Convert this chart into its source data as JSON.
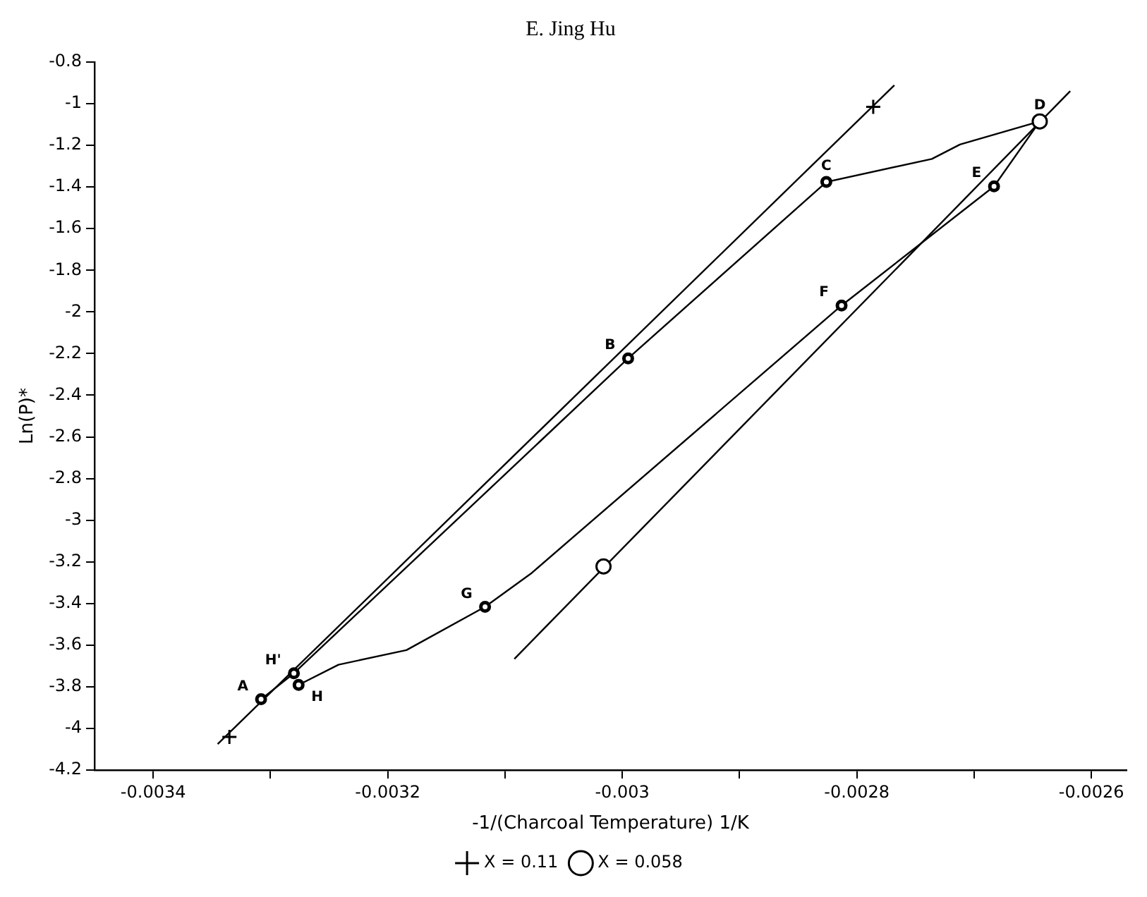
{
  "chart_data": {
    "type": "line",
    "title": "E. Jing Hu",
    "xlabel": "-1/(Charcoal Temperature) 1/K",
    "ylabel": "Ln(P)*",
    "xlim": [
      -0.00345,
      -0.00257
    ],
    "xticks": [
      -0.0034,
      {
        "value": -0.0033,
        "label": null
      },
      -0.0032,
      {
        "value": -0.0031,
        "label": null
      },
      -0.003,
      {
        "value": -0.0029,
        "label": null
      },
      -0.0028,
      {
        "value": -0.0027,
        "label": null
      },
      -0.0026
    ],
    "ylim": [
      -4.2,
      -0.8
    ],
    "yticks": [
      -0.8,
      -1,
      -1.2,
      -1.4,
      -1.6,
      -1.8,
      -2,
      -2.2,
      -2.4,
      -2.6,
      -2.8,
      -3,
      -3.2,
      -3.4,
      -3.6,
      -3.8,
      -4,
      -4.2
    ],
    "grid": false,
    "legend": "bottom",
    "series": [
      {
        "color": "#000000",
        "marker": "none",
        "x": [
          -0.003345,
          -0.002768
        ],
        "values": [
          -4.075,
          -0.911
        ]
      },
      {
        "color": "#000000",
        "marker": "none",
        "x": [
          -0.003092,
          -0.002618
        ],
        "values": [
          -3.666,
          -0.939
        ]
      },
      {
        "color": "#000000",
        "marker": "none",
        "x": [
          -0.003308,
          -0.00328,
          -0.002995,
          -0.002826,
          -0.002736,
          -0.002712,
          -0.002644,
          -0.002683,
          -0.002813,
          -0.003078,
          -0.003117,
          -0.003184,
          -0.003242,
          -0.003276
        ],
        "values": [
          -3.86,
          -3.735,
          -2.223,
          -1.376,
          -1.265,
          -1.196,
          -1.085,
          -1.397,
          -1.969,
          -3.257,
          -3.416,
          -3.624,
          -3.694,
          -3.791
        ]
      },
      {
        "type": "scatter",
        "color": "#000000",
        "marker": "circle",
        "x": [
          -0.003308,
          -0.00328,
          -0.002995,
          -0.002826,
          -0.002683,
          -0.002813,
          -0.003117,
          -0.003276
        ],
        "values": [
          -3.86,
          -3.735,
          -2.223,
          -1.376,
          -1.397,
          -1.969,
          -3.416,
          -3.791
        ]
      },
      {
        "type": "scatter",
        "name": "X = 0.11",
        "color": "#000000",
        "marker": "cross",
        "x": [
          -0.003335,
          -0.002786
        ],
        "values": [
          -4.041,
          -1.015
        ]
      },
      {
        "type": "scatter",
        "name": "X = 0.058",
        "color": "#000000",
        "marker": "circle",
        "x": [
          -0.002644,
          -0.003016
        ],
        "values": [
          -1.085,
          -3.222
        ]
      }
    ],
    "annotations": [
      {
        "text": "A",
        "x": -0.003308,
        "y": -3.86
      },
      {
        "text": "B",
        "x": -0.002995,
        "y": -2.223
      },
      {
        "text": "C",
        "x": -0.002826,
        "y": -1.376
      },
      {
        "text": "D",
        "x": -0.002644,
        "y": -1.085
      },
      {
        "text": "E",
        "x": -0.002683,
        "y": -1.397
      },
      {
        "text": "F",
        "x": -0.002813,
        "y": -1.969
      },
      {
        "text": "G",
        "x": -0.003117,
        "y": -3.416
      },
      {
        "text": "H",
        "x": -0.003276,
        "y": -3.791
      },
      {
        "text": "H'",
        "x": -0.00328,
        "y": -3.735
      }
    ]
  }
}
